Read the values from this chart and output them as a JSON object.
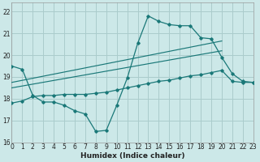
{
  "xlabel": "Humidex (Indice chaleur)",
  "background_color": "#cce8e8",
  "grid_color": "#aacccc",
  "line_color": "#1a7878",
  "xlim": [
    0,
    23
  ],
  "ylim": [
    16,
    22.4
  ],
  "xticks": [
    0,
    1,
    2,
    3,
    4,
    5,
    6,
    7,
    8,
    9,
    10,
    11,
    12,
    13,
    14,
    15,
    16,
    17,
    18,
    19,
    20,
    21,
    22,
    23
  ],
  "yticks": [
    16,
    17,
    18,
    19,
    20,
    21,
    22
  ],
  "curve1_x": [
    0,
    1,
    2,
    3,
    4,
    5,
    6,
    7,
    8,
    9,
    10,
    11,
    12,
    13,
    14,
    15,
    16,
    17,
    18,
    19,
    20,
    21,
    22,
    23
  ],
  "curve1_y": [
    19.5,
    19.35,
    18.15,
    17.85,
    17.85,
    17.7,
    17.45,
    17.3,
    16.5,
    16.55,
    17.7,
    18.95,
    20.55,
    21.8,
    21.55,
    21.4,
    21.35,
    21.35,
    20.8,
    20.75,
    19.9,
    19.15,
    18.8,
    18.75
  ],
  "curve2_x": [
    0,
    1,
    2,
    3,
    4,
    5,
    6,
    7,
    8,
    9,
    10,
    11,
    12,
    13,
    14,
    15,
    16,
    17,
    18,
    19,
    20,
    21,
    22,
    23
  ],
  "curve2_y": [
    17.8,
    17.9,
    18.1,
    18.15,
    18.15,
    18.2,
    18.2,
    18.2,
    18.25,
    18.3,
    18.4,
    18.5,
    18.6,
    18.7,
    18.8,
    18.85,
    18.95,
    19.05,
    19.1,
    19.2,
    19.3,
    18.8,
    18.75,
    18.75
  ],
  "line1_x": [
    0,
    20
  ],
  "line1_y": [
    18.75,
    20.65
  ],
  "line2_x": [
    0,
    20
  ],
  "line2_y": [
    18.5,
    20.2
  ]
}
